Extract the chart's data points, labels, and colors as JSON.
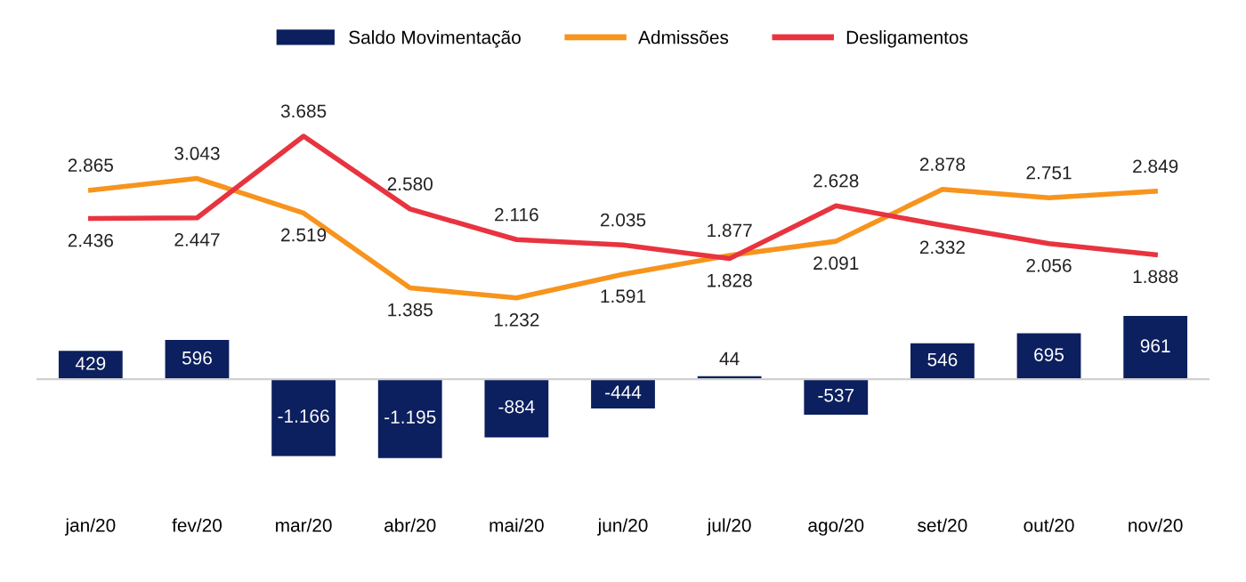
{
  "chart_data": {
    "type": "line",
    "categories": [
      "jan/20",
      "fev/20",
      "mar/20",
      "abr/20",
      "mai/20",
      "jun/20",
      "jul/20",
      "ago/20",
      "set/20",
      "out/20",
      "nov/20"
    ],
    "series": [
      {
        "name": "Saldo Movimentação",
        "type": "bar",
        "color": "#0c1f5e",
        "values": [
          429,
          596,
          -1166,
          -1195,
          -884,
          -444,
          44,
          -537,
          546,
          695,
          961
        ],
        "value_labels": [
          "429",
          "596",
          "-1.166",
          "-1.195",
          "-884",
          "-444",
          "44",
          "-537",
          "546",
          "695",
          "961"
        ]
      },
      {
        "name": "Admissões",
        "color": "#f7941d",
        "values": [
          2865,
          3043,
          2519,
          1385,
          1232,
          1591,
          1877,
          2091,
          2878,
          2751,
          2849
        ],
        "value_labels": [
          "2.865",
          "3.043",
          "2.519",
          "1.385",
          "1.232",
          "1.591",
          "1.877",
          "2.091",
          "2.878",
          "2.751",
          "2.849"
        ]
      },
      {
        "name": "Desligamentos",
        "color": "#e8343f",
        "values": [
          2436,
          2447,
          3685,
          2580,
          2116,
          2035,
          1828,
          2628,
          2332,
          2056,
          1888
        ],
        "value_labels": [
          "2.436",
          "2.447",
          "3.685",
          "2.580",
          "2.116",
          "2.035",
          "1.828",
          "2.628",
          "2.332",
          "2.056",
          "1.888"
        ]
      }
    ],
    "tick_labels": "x",
    "grid": false,
    "legend": "top",
    "marker": "none",
    "line_style": "solid"
  }
}
